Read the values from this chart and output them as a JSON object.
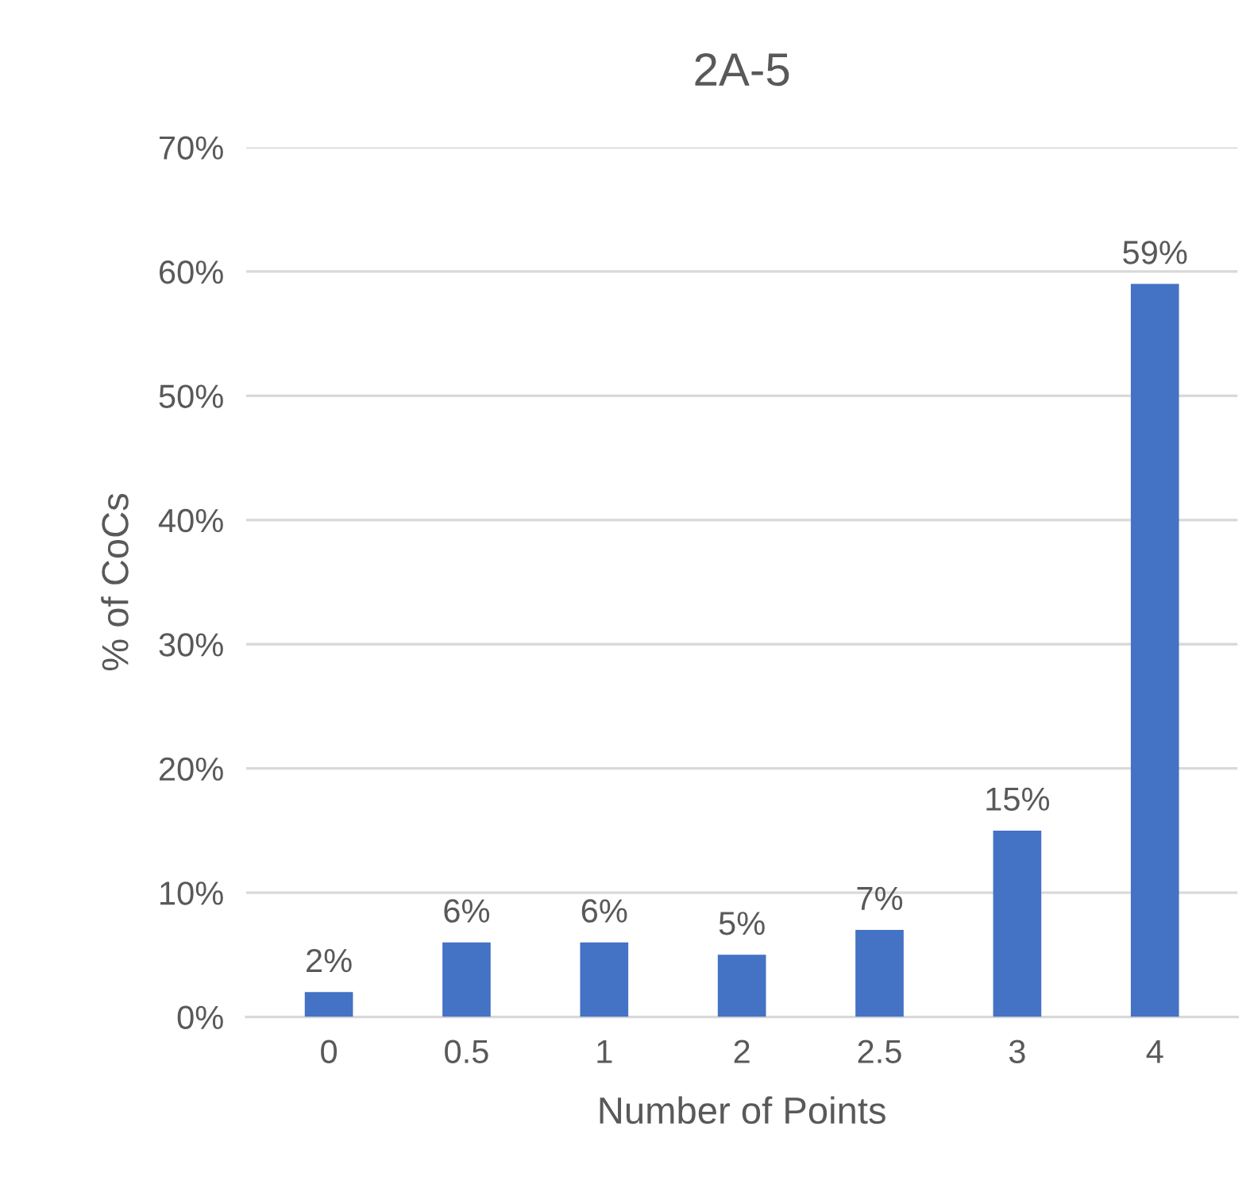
{
  "chart_data": {
    "type": "bar",
    "title": "2A-5",
    "xlabel": "Number of Points",
    "ylabel": "% of CoCs",
    "categories": [
      "0",
      "0.5",
      "1",
      "2",
      "2.5",
      "3",
      "4"
    ],
    "values": [
      2,
      6,
      6,
      5,
      7,
      15,
      59
    ],
    "value_labels": [
      "2%",
      "6%",
      "6%",
      "5%",
      "7%",
      "15%",
      "59%"
    ],
    "color": "#4472c4",
    "ylim": [
      0,
      70
    ],
    "yticks": [
      {
        "value": 0,
        "label": "0%"
      },
      {
        "value": 10,
        "label": "10%"
      },
      {
        "value": 20,
        "label": "20%"
      },
      {
        "value": 30,
        "label": "30%"
      },
      {
        "value": 40,
        "label": "40%"
      },
      {
        "value": 50,
        "label": "50%"
      },
      {
        "value": 60,
        "label": "60%"
      },
      {
        "value": 70,
        "label": "70%"
      }
    ],
    "grid": "y"
  }
}
